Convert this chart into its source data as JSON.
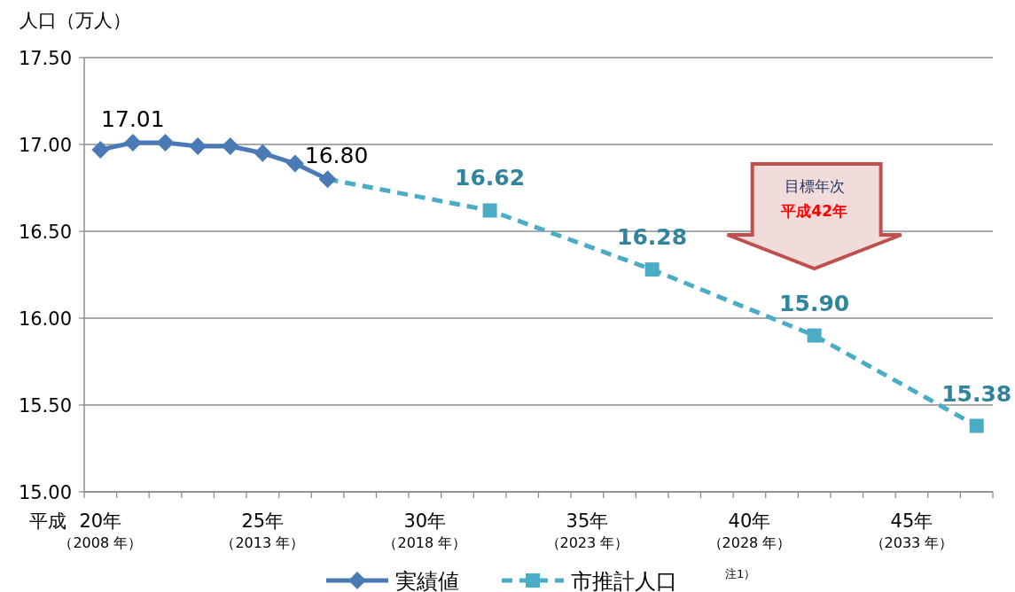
{
  "chart_data": {
    "type": "line",
    "ylabel": "人口（万人）",
    "xlabel": "平成",
    "categories": [
      "20年（2008 年）",
      null,
      null,
      null,
      null,
      "25年（2013 年）",
      null,
      null,
      null,
      null,
      "30年（2018 年）",
      null,
      null,
      null,
      null,
      "35年（2023 年）",
      null,
      null,
      null,
      null,
      "40年（2028 年）",
      null,
      null,
      null,
      null,
      "45年（2033 年）",
      null,
      null
    ],
    "ylim": [
      15,
      17.5
    ],
    "yticks": [
      {
        "value": 15,
        "label": "15.00"
      },
      {
        "value": 15.5,
        "label": "15.50"
      },
      {
        "value": 16,
        "label": "16.00"
      },
      {
        "value": 16.5,
        "label": "16.50"
      },
      {
        "value": 17,
        "label": "17.00"
      },
      {
        "value": 17.5,
        "label": "17.50"
      }
    ],
    "grid": "y",
    "legend": "bottom",
    "series": [
      {
        "name": "実績値",
        "color": "#4a7ab5",
        "marker": "diamond",
        "line_style": "solid",
        "values": [
          16.97,
          17.01,
          17.01,
          16.99,
          16.99,
          16.95,
          16.89,
          16.8,
          null,
          null,
          null,
          null,
          null,
          null,
          null,
          null,
          null,
          null,
          null,
          null,
          null,
          null,
          null,
          null,
          null,
          null,
          null,
          null
        ],
        "value_labels": [
          null,
          "17.01",
          null,
          null,
          null,
          null,
          null,
          "16.80",
          null,
          null,
          null,
          null,
          null,
          null,
          null,
          null,
          null,
          null,
          null,
          null,
          null,
          null,
          null,
          null,
          null,
          null,
          null,
          null
        ]
      },
      {
        "name": "市推計人口",
        "color": "#4bacc6",
        "marker": "square",
        "line_style": "dashed",
        "values": [
          null,
          null,
          null,
          null,
          null,
          null,
          null,
          16.8,
          null,
          null,
          null,
          null,
          16.62,
          null,
          null,
          null,
          null,
          16.28,
          null,
          null,
          null,
          null,
          15.9,
          null,
          null,
          null,
          null,
          15.38
        ],
        "value_labels": [
          null,
          null,
          null,
          null,
          null,
          null,
          null,
          null,
          null,
          null,
          null,
          null,
          "16.62",
          null,
          null,
          null,
          null,
          "16.28",
          null,
          null,
          null,
          null,
          "15.90",
          null,
          null,
          null,
          null,
          "15.38"
        ]
      }
    ],
    "annotations": [
      "目標年次",
      "平成42年",
      "注1）"
    ]
  }
}
